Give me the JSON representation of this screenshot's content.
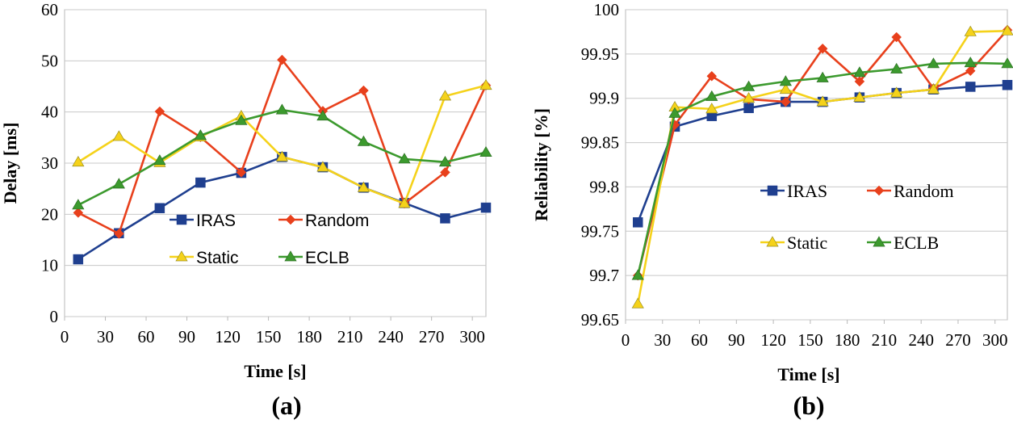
{
  "chart_data": [
    {
      "type": "line",
      "panel_label": "(a)",
      "xlabel": "Time [s]",
      "ylabel": "Delay [ms]",
      "xlim": [
        0,
        310
      ],
      "ylim": [
        0,
        60
      ],
      "xticks": [
        "0",
        "30",
        "60",
        "90",
        "120",
        "150",
        "180",
        "210",
        "240",
        "270",
        "300"
      ],
      "yticks": [
        "0",
        "10",
        "20",
        "30",
        "40",
        "50",
        "60"
      ],
      "grid": "horizontal",
      "legend_position": "bottom-right",
      "x": [
        10,
        40,
        70,
        100,
        130,
        160,
        190,
        220,
        250,
        280,
        310
      ],
      "series": [
        {
          "name": "IRAS",
          "color": "#1f3f8f",
          "marker": "square",
          "values": [
            11.2,
            16.3,
            21.2,
            26.2,
            28.1,
            31.2,
            29.2,
            25.2,
            22.2,
            19.2,
            21.3
          ]
        },
        {
          "name": "Random",
          "color": "#e8401c",
          "marker": "diamond",
          "values": [
            20.3,
            16.2,
            40.1,
            35.1,
            28.2,
            50.2,
            40.2,
            44.2,
            22.1,
            28.2,
            45.2
          ]
        },
        {
          "name": "Static",
          "color": "#f5d21a",
          "marker": "triangle",
          "values": [
            30.2,
            35.2,
            30.1,
            35.1,
            39.2,
            31.2,
            29.2,
            25.2,
            22.1,
            43.1,
            45.2
          ]
        },
        {
          "name": "ECLB",
          "color": "#3c9a2e",
          "marker": "triangle",
          "values": [
            21.8,
            25.9,
            30.5,
            35.4,
            38.3,
            40.4,
            39.2,
            34.2,
            30.8,
            30.2,
            32.1
          ]
        }
      ]
    },
    {
      "type": "line",
      "panel_label": "(b)",
      "xlabel": "Time [s]",
      "ylabel": "Reliability [%]",
      "xlim": [
        0,
        310
      ],
      "ylim": [
        99.65,
        100
      ],
      "xticks": [
        "0",
        "30",
        "60",
        "90",
        "120",
        "150",
        "180",
        "210",
        "240",
        "270",
        "300"
      ],
      "yticks": [
        "99.65",
        "99.7",
        "99.75",
        "99.8",
        "99.85",
        "99.9",
        "99.95",
        "100"
      ],
      "grid": "horizontal",
      "legend_position": "center-right",
      "x": [
        10,
        40,
        70,
        100,
        130,
        160,
        190,
        220,
        250,
        280,
        310
      ],
      "series": [
        {
          "name": "IRAS",
          "color": "#1f3f8f",
          "marker": "square",
          "values": [
            99.76,
            99.868,
            99.88,
            99.889,
            99.896,
            99.896,
            99.901,
            99.906,
            99.91,
            99.913,
            99.915
          ]
        },
        {
          "name": "Random",
          "color": "#e8401c",
          "marker": "diamond",
          "values": [
            99.7,
            99.87,
            99.925,
            99.899,
            99.896,
            99.956,
            99.919,
            99.969,
            99.911,
            99.931,
            99.977
          ]
        },
        {
          "name": "Static",
          "color": "#f5d21a",
          "marker": "triangle",
          "values": [
            99.668,
            99.89,
            99.888,
            99.9,
            99.91,
            99.896,
            99.901,
            99.906,
            99.91,
            99.975,
            99.976
          ]
        },
        {
          "name": "ECLB",
          "color": "#3c9a2e",
          "marker": "triangle",
          "values": [
            99.7,
            99.883,
            99.902,
            99.913,
            99.919,
            99.923,
            99.929,
            99.933,
            99.939,
            99.94,
            99.939
          ]
        }
      ]
    }
  ]
}
